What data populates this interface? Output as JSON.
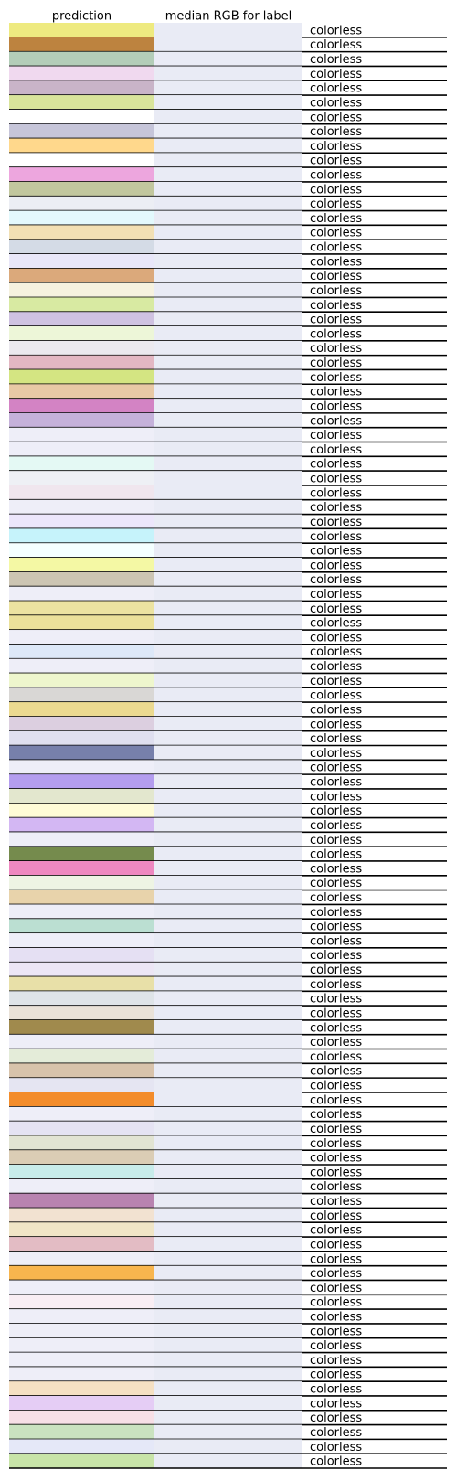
{
  "chart_data": {
    "type": "table",
    "columns": [
      "prediction",
      "median RGB for label",
      ""
    ],
    "label_text": "colorless",
    "median_color": "#e9ebf5",
    "rows": [
      {
        "prediction": "#eeea80"
      },
      {
        "prediction": "#bd833f"
      },
      {
        "prediction": "#b3cdb8"
      },
      {
        "prediction": "#f0d9ef"
      },
      {
        "prediction": "#c9b4c8"
      },
      {
        "prediction": "#d9e49b"
      },
      {
        "prediction": "#ffffff"
      },
      {
        "prediction": "#c6c5d9"
      },
      {
        "prediction": "#ffd88c"
      },
      {
        "prediction": "#ffffff"
      },
      {
        "prediction": "#eda6de"
      },
      {
        "prediction": "#c2c79e"
      },
      {
        "prediction": "#eceef4"
      },
      {
        "prediction": "#e3f9fd"
      },
      {
        "prediction": "#f2e0b4"
      },
      {
        "prediction": "#d4dbe6"
      },
      {
        "prediction": "#e9e7f9"
      },
      {
        "prediction": "#dba97b"
      },
      {
        "prediction": "#f6f2df"
      },
      {
        "prediction": "#d8eaa2"
      },
      {
        "prediction": "#cfc2e1"
      },
      {
        "prediction": "#edf6d8"
      },
      {
        "prediction": "#ebe9ef"
      },
      {
        "prediction": "#e3b7c3"
      },
      {
        "prediction": "#d4e582"
      },
      {
        "prediction": "#e8c9a5"
      },
      {
        "prediction": "#d383c4"
      },
      {
        "prediction": "#c5b1da"
      },
      {
        "prediction": "#eeeef8"
      },
      {
        "prediction": "#eeeef8"
      },
      {
        "prediction": "#e4f9f4"
      },
      {
        "prediction": "#eef0f5"
      },
      {
        "prediction": "#f0e6ee"
      },
      {
        "prediction": "#eeeef8"
      },
      {
        "prediction": "#ece6fb"
      },
      {
        "prediction": "#c6f3fb"
      },
      {
        "prediction": "#f4ffff"
      },
      {
        "prediction": "#f4f8a4"
      },
      {
        "prediction": "#ccc5b3"
      },
      {
        "prediction": "#eeeef8"
      },
      {
        "prediction": "#ece3a1"
      },
      {
        "prediction": "#ebe19a"
      },
      {
        "prediction": "#eeeef8"
      },
      {
        "prediction": "#dde8f8"
      },
      {
        "prediction": "#eeeef8"
      },
      {
        "prediction": "#eef6cd"
      },
      {
        "prediction": "#d9d7d5"
      },
      {
        "prediction": "#ebd990"
      },
      {
        "prediction": "#dccfe0"
      },
      {
        "prediction": "#dfdfef"
      },
      {
        "prediction": "#7780ab"
      },
      {
        "prediction": "#eeeef8"
      },
      {
        "prediction": "#b49def"
      },
      {
        "prediction": "#e3e7ce"
      },
      {
        "prediction": "#fefbd6"
      },
      {
        "prediction": "#d3b7f3"
      },
      {
        "prediction": "#eeeef8"
      },
      {
        "prediction": "#758b4d"
      },
      {
        "prediction": "#ee88c0"
      },
      {
        "prediction": "#eef4e4"
      },
      {
        "prediction": "#e8d3ab"
      },
      {
        "prediction": "#eeeef8"
      },
      {
        "prediction": "#bbdfd2"
      },
      {
        "prediction": "#eeeef8"
      },
      {
        "prediction": "#e5e0f3"
      },
      {
        "prediction": "#ece6f5"
      },
      {
        "prediction": "#e8e0a8"
      },
      {
        "prediction": "#dfe4e8"
      },
      {
        "prediction": "#eae2d8"
      },
      {
        "prediction": "#a08a4d"
      },
      {
        "prediction": "#eeeef8"
      },
      {
        "prediction": "#e4ecd9"
      },
      {
        "prediction": "#d8c3ab"
      },
      {
        "prediction": "#e5e5f2"
      },
      {
        "prediction": "#f38c2b"
      },
      {
        "prediction": "#eeeef8"
      },
      {
        "prediction": "#e5e3f3"
      },
      {
        "prediction": "#e2e4d3"
      },
      {
        "prediction": "#dbcdb5"
      },
      {
        "prediction": "#c8ecea"
      },
      {
        "prediction": "#eeeef8"
      },
      {
        "prediction": "#b883b0"
      },
      {
        "prediction": "#f2e2d1"
      },
      {
        "prediction": "#f0e5c6"
      },
      {
        "prediction": "#e3bcc4"
      },
      {
        "prediction": "#eeeef8"
      },
      {
        "prediction": "#f8b54e"
      },
      {
        "prediction": "#eeeef8"
      },
      {
        "prediction": "#f9eef4"
      },
      {
        "prediction": "#eeeef8"
      },
      {
        "prediction": "#eeeef8"
      },
      {
        "prediction": "#eeeef8"
      },
      {
        "prediction": "#eeeef8"
      },
      {
        "prediction": "#eeeef8"
      },
      {
        "prediction": "#f5e0c3"
      },
      {
        "prediction": "#e5cdf5"
      },
      {
        "prediction": "#f7dfe6"
      },
      {
        "prediction": "#cae2c0"
      },
      {
        "prediction": "#e5e8f8"
      },
      {
        "prediction": "#c8e4a8"
      }
    ]
  }
}
